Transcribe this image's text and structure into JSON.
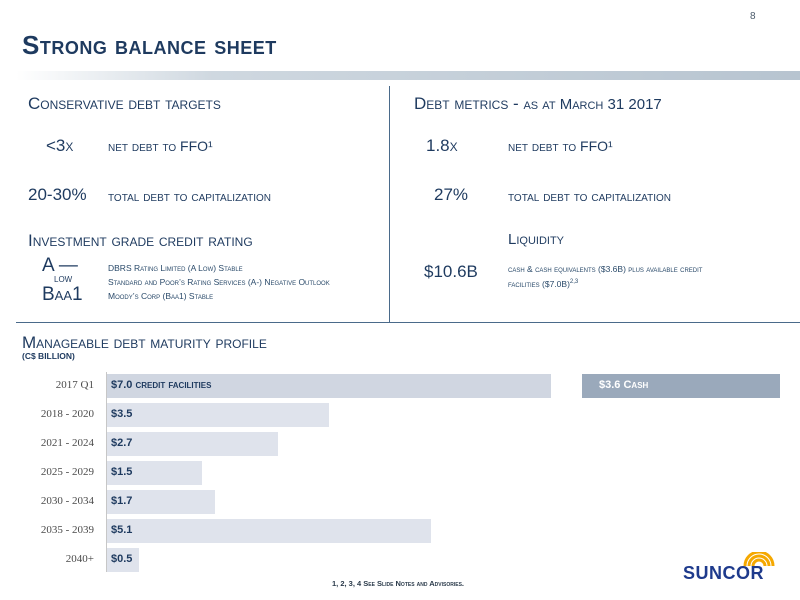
{
  "page_number": "8",
  "title": "Strong balance sheet",
  "targets": {
    "heading": "Conservative debt targets",
    "rows": [
      {
        "value": "<3x",
        "label": "net debt to FFO¹"
      },
      {
        "value": "20-30%",
        "label": "total debt to capitalization"
      }
    ]
  },
  "metrics": {
    "heading": "Debt metrics - ",
    "heading_suffix": "as at March 31 2017",
    "rows": [
      {
        "value": "1.8x",
        "label": "net debt to FFO¹"
      },
      {
        "value": "27%",
        "label": "total debt to capitalization"
      }
    ]
  },
  "credit_rating": {
    "heading": "Investment grade credit rating",
    "a_rating": "A —",
    "a_rating_low": "low",
    "baa1": "Baa1",
    "details": [
      "DBRS Rating Limited (A Low) Stable",
      "Standard and Poor’s Rating Services (A-) Negative Outlook",
      "Moody’s Corp (Baa1) Stable"
    ]
  },
  "liquidity": {
    "heading": "Liquidity",
    "value": "$10.6B",
    "detail_line1": "cash & cash equivalents ($3.6B) plus available credit",
    "detail_line2": "facilities ($7.0B)",
    "detail_sup": "2,3"
  },
  "maturity": {
    "heading": "Manageable debt maturity profile",
    "subtitle": "(C$ BILLION)"
  },
  "chart_data": {
    "type": "bar",
    "orientation": "horizontal",
    "title": "Manageable debt maturity profile",
    "ylabel": "(C$ BILLION)",
    "categories": [
      "2017 Q1",
      "2018 - 2020",
      "2021 - 2024",
      "2025 - 2029",
      "2030 - 2034",
      "2035 - 2039",
      "2040+"
    ],
    "series": [
      {
        "name": "",
        "values": [
          7.0,
          3.5,
          2.7,
          1.5,
          1.7,
          5.1,
          0.5
        ]
      },
      {
        "name": "",
        "values": [
          3.6,
          0,
          0,
          0,
          0,
          0,
          0
        ]
      }
    ],
    "data_labels": [
      "$7.0",
      "$3.5",
      "$2.7",
      "$1.5",
      "$1.7",
      "$5.1",
      "$0.5"
    ],
    "first_label_suffix": "credit facilities",
    "cash_label": "$3.6 ",
    "cash_label_suffix": "Cash",
    "xlim": [
      0,
      10.6
    ],
    "grid": false
  },
  "footnote": {
    "refs": "1, 2, 3, 4 ",
    "text": "See Slide Notes and Advisories."
  },
  "logo": {
    "text": "SUNCOR",
    "accent_color": "#f5a800",
    "brand_color": "#1e3a8c"
  }
}
